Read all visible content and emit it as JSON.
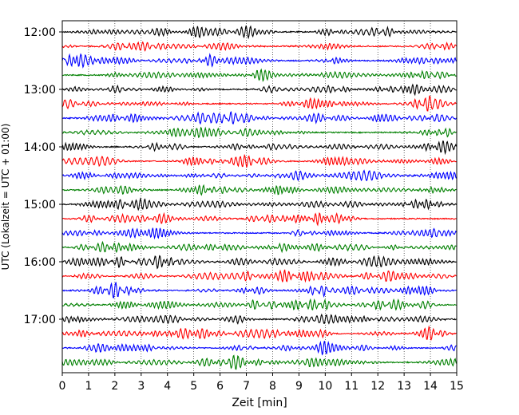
{
  "chart_data": {
    "type": "line",
    "title": "",
    "xlabel": "Zeit  [min]",
    "ylabel": "UTC (Lokalzeit = UTC + 01:00)",
    "xlim": [
      0,
      15
    ],
    "x_ticks": [
      "0",
      "1",
      "2",
      "3",
      "4",
      "5",
      "6",
      "7",
      "8",
      "9",
      "10",
      "11",
      "12",
      "13",
      "14",
      "15"
    ],
    "y_ticks": [
      "12:00",
      "13:00",
      "14:00",
      "15:00",
      "16:00",
      "17:00"
    ],
    "trace_start_times": [
      "12:00",
      "12:15",
      "12:30",
      "12:45",
      "13:00",
      "13:15",
      "13:30",
      "13:45",
      "14:00",
      "14:15",
      "14:30",
      "14:45",
      "15:00",
      "15:15",
      "15:30",
      "15:45",
      "16:00",
      "16:15",
      "16:30",
      "16:45",
      "17:00",
      "17:15",
      "17:30",
      "17:45"
    ],
    "trace_colors": [
      "#000000",
      "#ff0000",
      "#0000ff",
      "#008000"
    ],
    "vertical_grid": true,
    "grid_style": "dotted",
    "legend": "none"
  }
}
